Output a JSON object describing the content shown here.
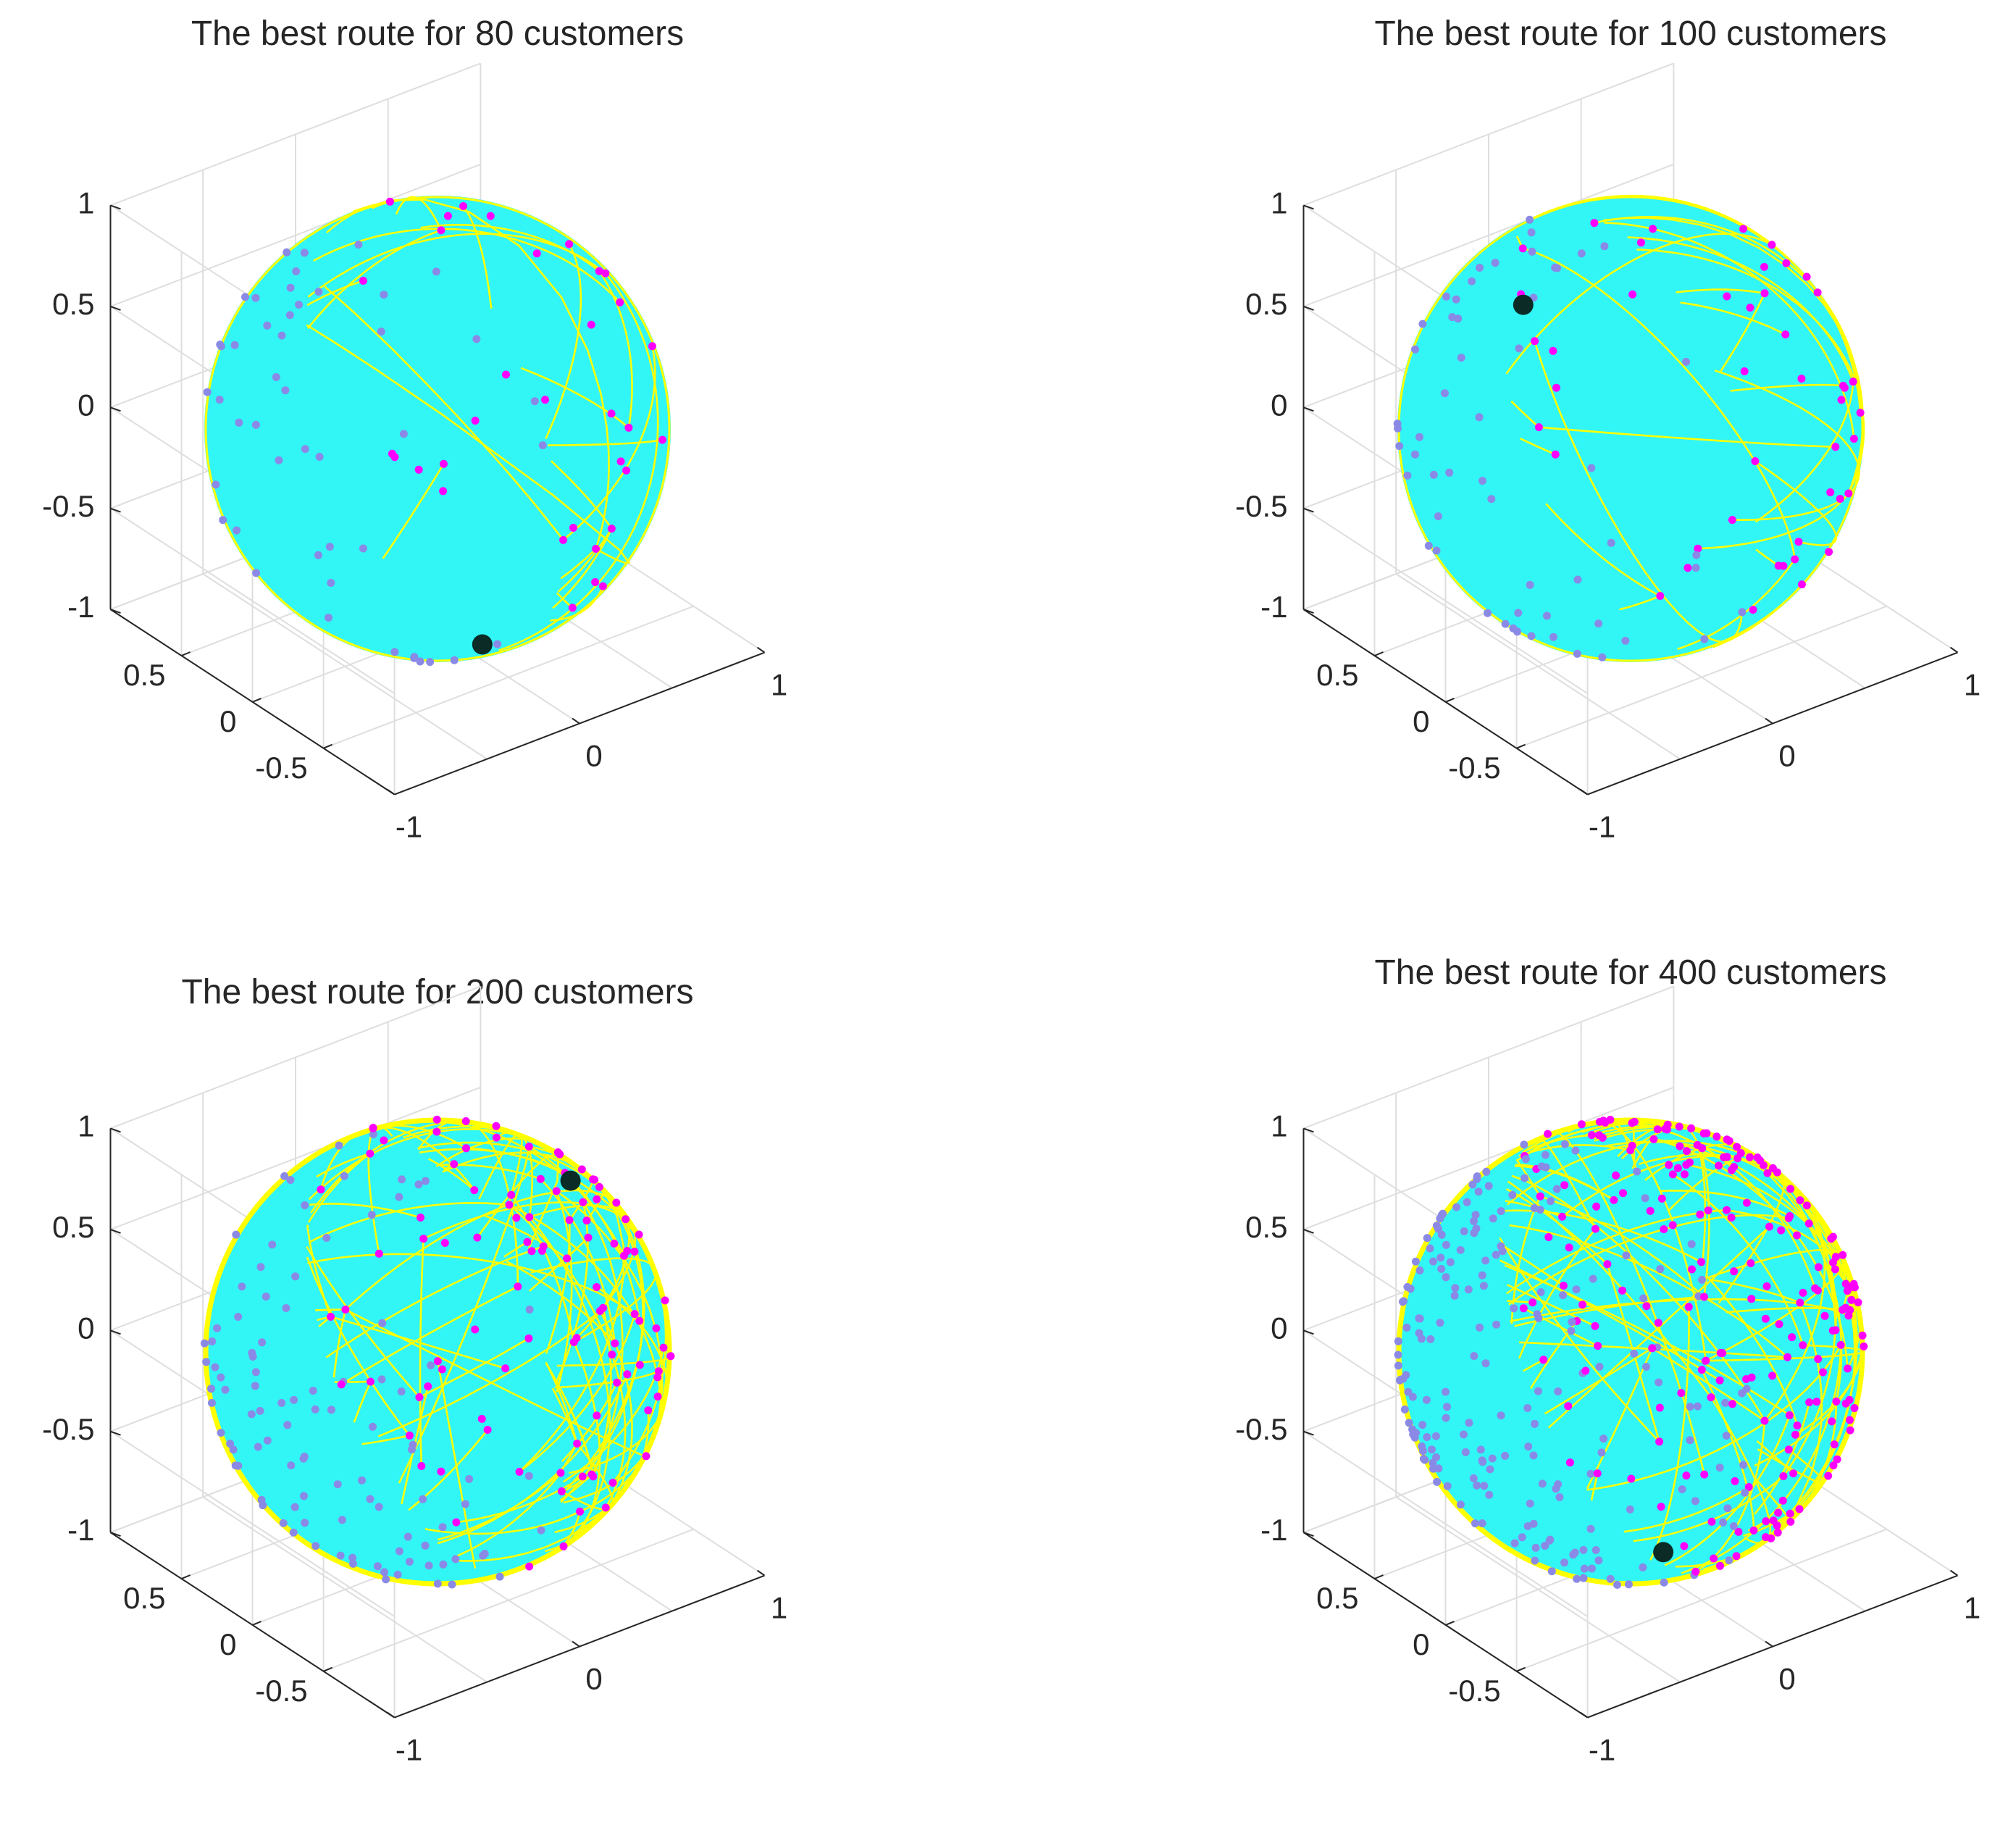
{
  "colors": {
    "background": "#ffffff",
    "sphere": "#32f5f5",
    "route": "#ffff00",
    "customer": "#ff00ff",
    "hidden_customer": "#8a8ae6",
    "depot": "#0a2b26",
    "grid": "#dedede",
    "axis": "#262626",
    "text": "#262626"
  },
  "chart_data": [
    {
      "type": "scatter",
      "title": "The best route for 80 customers",
      "subtype": "3d route on unit sphere",
      "customers": 80,
      "route_arcs": 34,
      "depot": [
        0.05,
        -0.25,
        -0.97
      ],
      "xlim": [
        -1,
        1
      ],
      "ylim": [
        -1,
        1
      ],
      "zlim": [
        -1,
        1
      ],
      "x_ticks": [
        "-1",
        "0",
        "1"
      ],
      "y_ticks": [
        "-0.5",
        "0",
        "0.5"
      ],
      "z_ticks": [
        "-1",
        "-0.5",
        "0",
        "0.5",
        "1"
      ],
      "grid": true
    },
    {
      "type": "scatter",
      "title": "The best route for 100 customers",
      "subtype": "3d route on unit sphere",
      "customers": 100,
      "route_arcs": 40,
      "depot": [
        -0.35,
        0.3,
        0.6
      ],
      "xlim": [
        -1,
        1
      ],
      "ylim": [
        -1,
        1
      ],
      "zlim": [
        -1,
        1
      ],
      "x_ticks": [
        "-1",
        "0",
        "1"
      ],
      "y_ticks": [
        "-0.5",
        "0",
        "0.5"
      ],
      "z_ticks": [
        "-1",
        "-0.5",
        "0",
        "0.5",
        "1"
      ],
      "grid": true
    },
    {
      "type": "scatter",
      "title": "The best route for 200 customers",
      "subtype": "3d route on unit sphere",
      "customers": 200,
      "route_arcs": 140,
      "depot": [
        0.45,
        -0.35,
        0.85
      ],
      "xlim": [
        -1,
        1
      ],
      "ylim": [
        -1,
        1
      ],
      "zlim": [
        -1,
        1
      ],
      "x_ticks": [
        "-1",
        "0",
        "1"
      ],
      "y_ticks": [
        "-0.5",
        "0",
        "0.5"
      ],
      "z_ticks": [
        "-1",
        "-0.5",
        "0",
        "0.5",
        "1"
      ],
      "grid": true
    },
    {
      "type": "scatter",
      "title": "The best route for 400 customers",
      "subtype": "3d route on unit sphere",
      "customers": 400,
      "route_arcs": 150,
      "depot": [
        0.1,
        -0.1,
        -0.98
      ],
      "xlim": [
        -1,
        1
      ],
      "ylim": [
        -1,
        1
      ],
      "zlim": [
        -1,
        1
      ],
      "x_ticks": [
        "-1",
        "0",
        "1"
      ],
      "y_ticks": [
        "-0.5",
        "0",
        "0.5"
      ],
      "z_ticks": [
        "-1",
        "-0.5",
        "0",
        "0.5",
        "1"
      ],
      "grid": true
    }
  ]
}
